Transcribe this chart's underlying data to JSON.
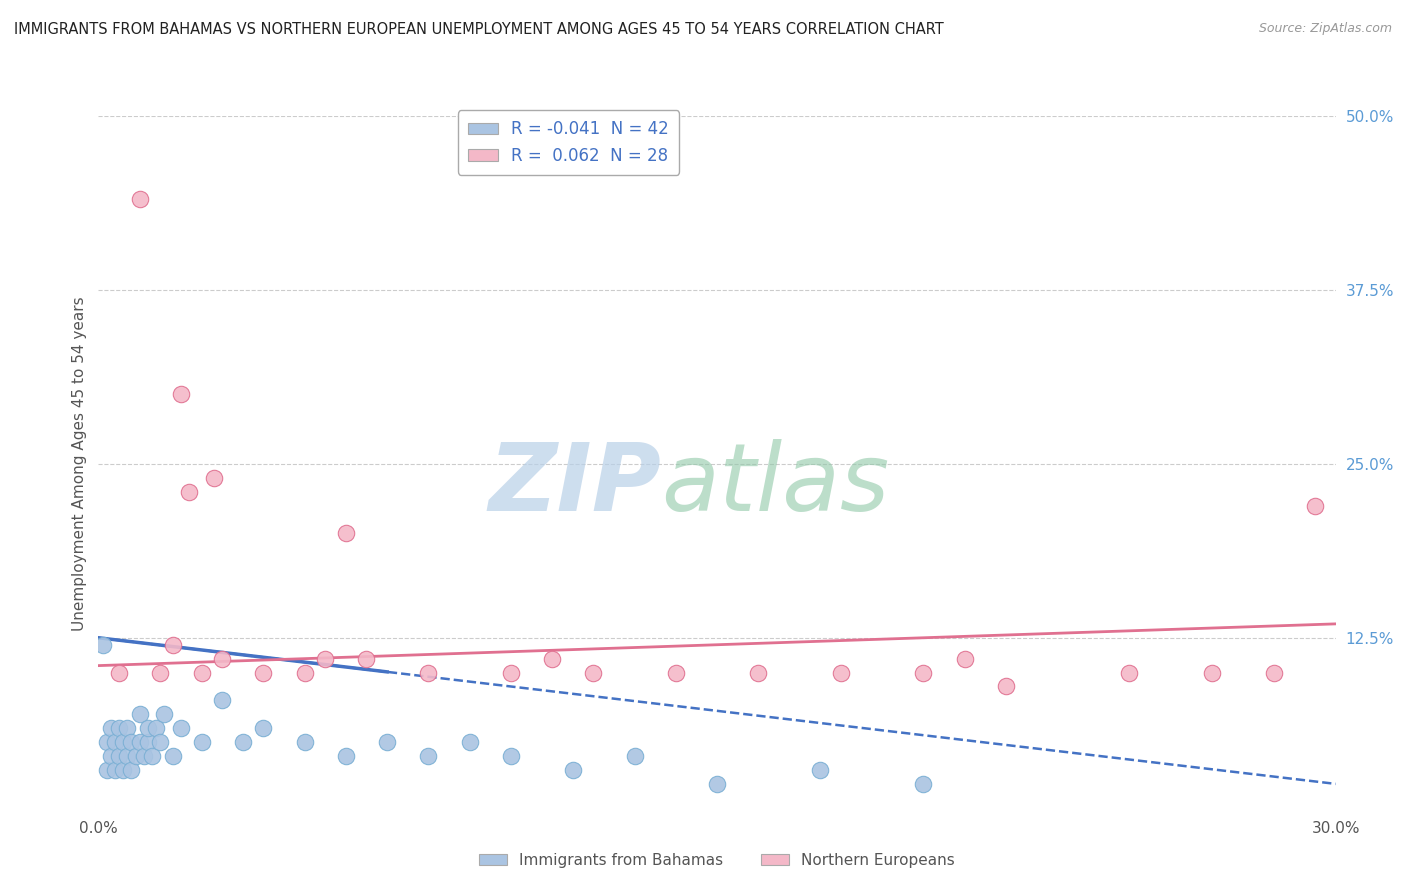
{
  "title": "IMMIGRANTS FROM BAHAMAS VS NORTHERN EUROPEAN UNEMPLOYMENT AMONG AGES 45 TO 54 YEARS CORRELATION CHART",
  "source": "Source: ZipAtlas.com",
  "ylabel": "Unemployment Among Ages 45 to 54 years",
  "xlim": [
    0.0,
    0.3
  ],
  "ylim": [
    0.0,
    0.5
  ],
  "yticks_right": [
    0.125,
    0.25,
    0.375,
    0.5
  ],
  "yticklabels_right": [
    "12.5%",
    "25.0%",
    "37.5%",
    "50.0%"
  ],
  "series1_name": "Immigrants from Bahamas",
  "series1_R": -0.041,
  "series1_N": 42,
  "series1_color": "#aac4e2",
  "series1_edge": "#7aafd4",
  "series1_line_color": "#4472c4",
  "series2_name": "Northern Europeans",
  "series2_R": 0.062,
  "series2_N": 28,
  "series2_color": "#f4b8c8",
  "series2_edge": "#e07090",
  "series2_line_color": "#e07090",
  "background_color": "#ffffff",
  "grid_color": "#cccccc",
  "series1_x": [
    0.001,
    0.002,
    0.002,
    0.003,
    0.003,
    0.004,
    0.004,
    0.005,
    0.005,
    0.006,
    0.006,
    0.007,
    0.007,
    0.008,
    0.008,
    0.009,
    0.01,
    0.01,
    0.011,
    0.012,
    0.012,
    0.013,
    0.014,
    0.015,
    0.016,
    0.018,
    0.02,
    0.025,
    0.03,
    0.035,
    0.04,
    0.05,
    0.06,
    0.07,
    0.08,
    0.09,
    0.1,
    0.115,
    0.13,
    0.15,
    0.175,
    0.2
  ],
  "series1_y": [
    0.12,
    0.03,
    0.05,
    0.04,
    0.06,
    0.03,
    0.05,
    0.04,
    0.06,
    0.03,
    0.05,
    0.04,
    0.06,
    0.03,
    0.05,
    0.04,
    0.05,
    0.07,
    0.04,
    0.05,
    0.06,
    0.04,
    0.06,
    0.05,
    0.07,
    0.04,
    0.06,
    0.05,
    0.08,
    0.05,
    0.06,
    0.05,
    0.04,
    0.05,
    0.04,
    0.05,
    0.04,
    0.03,
    0.04,
    0.02,
    0.03,
    0.02
  ],
  "series2_x": [
    0.005,
    0.01,
    0.015,
    0.018,
    0.02,
    0.022,
    0.025,
    0.028,
    0.03,
    0.04,
    0.05,
    0.055,
    0.06,
    0.065,
    0.08,
    0.1,
    0.11,
    0.12,
    0.14,
    0.16,
    0.18,
    0.2,
    0.21,
    0.22,
    0.25,
    0.27,
    0.285,
    0.295
  ],
  "series2_y": [
    0.1,
    0.44,
    0.1,
    0.12,
    0.3,
    0.23,
    0.1,
    0.24,
    0.11,
    0.1,
    0.1,
    0.11,
    0.2,
    0.11,
    0.1,
    0.1,
    0.11,
    0.1,
    0.1,
    0.1,
    0.1,
    0.1,
    0.11,
    0.09,
    0.1,
    0.1,
    0.1,
    0.22
  ],
  "s1_trend_x0": 0.0,
  "s1_trend_y0": 0.125,
  "s1_trend_x1": 0.3,
  "s1_trend_y1": 0.02,
  "s2_trend_x0": 0.0,
  "s2_trend_y0": 0.105,
  "s2_trend_x1": 0.3,
  "s2_trend_y1": 0.135
}
